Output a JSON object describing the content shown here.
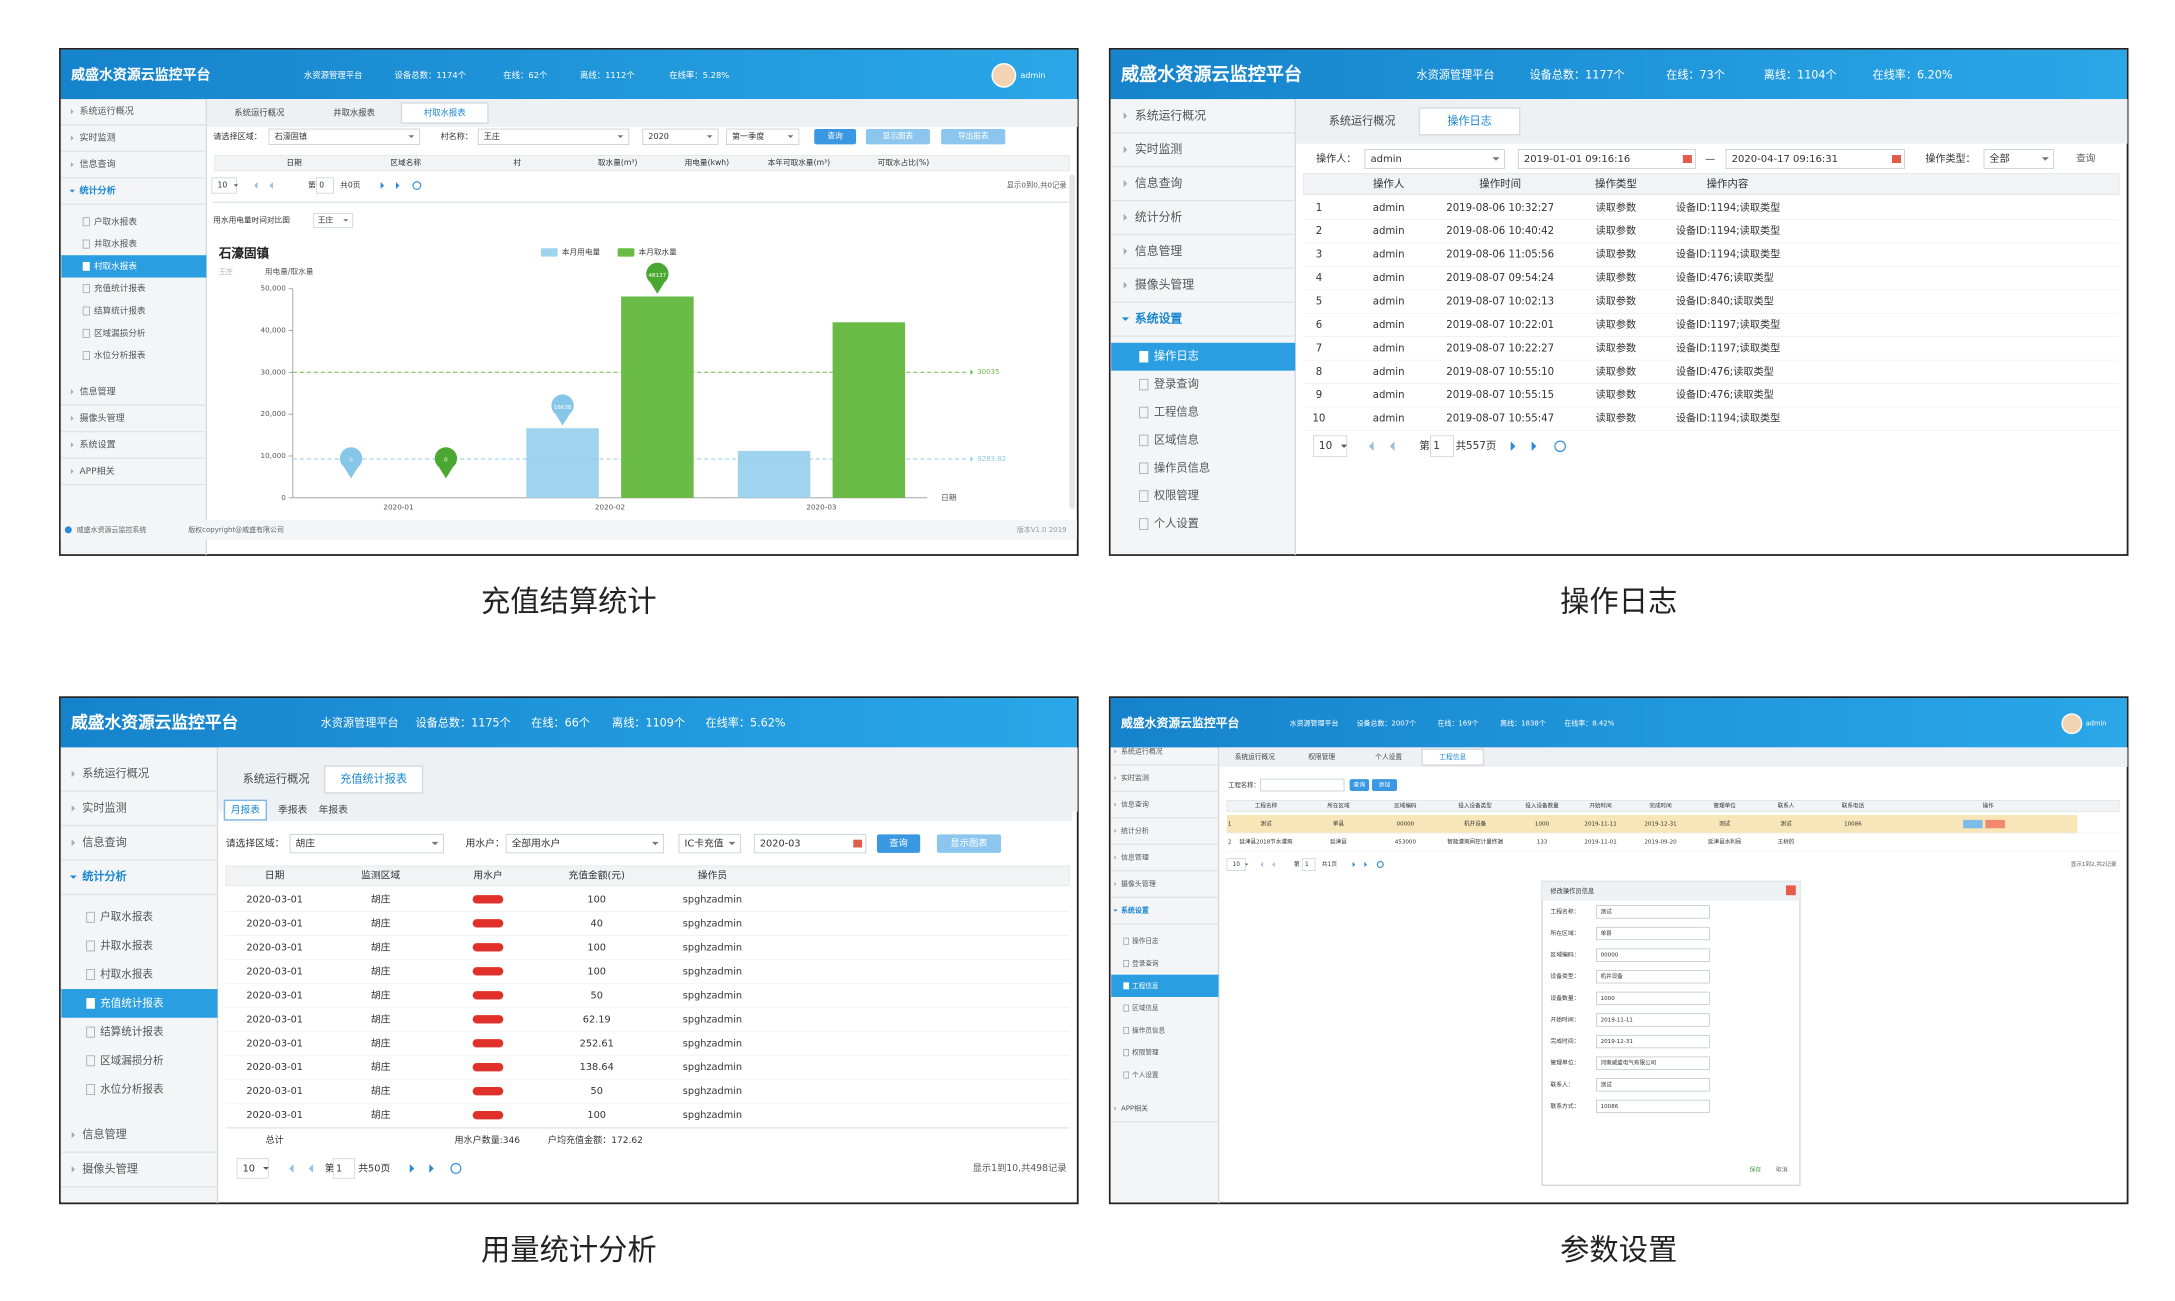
{
  "panels": [
    {
      "caption": "充值结算统计",
      "header": {
        "title": "威盛水资源云监控平台",
        "items": [
          "水资源管理平台",
          "设备总数：1174个",
          "在线：62个",
          "离线：1112个",
          "在线率：5.28%"
        ],
        "user": "admin"
      },
      "nav": [
        {
          "label": "系统运行概况"
        },
        {
          "label": "实时监测"
        },
        {
          "label": "信息查询"
        },
        {
          "label": "统计分析",
          "children": [
            "户取水报表",
            "井取水报表",
            "村取水报表",
            "充值统计报表",
            "结算统计报表",
            "区域漏损分析",
            "水位分析报表"
          ]
        },
        {
          "label": "信息管理"
        },
        {
          "label": "摄像头管理"
        },
        {
          "label": "系统设置"
        },
        {
          "label": "APP相关"
        }
      ],
      "tabs": [
        "系统运行概况",
        "井取水报表",
        "村取水报表"
      ],
      "filters": [
        "请选择区域：",
        "石濠固镇",
        "村名称：",
        "王庄",
        "2020",
        "第一季度"
      ],
      "buttons": [
        "查询",
        "显示图表",
        "导出报表"
      ],
      "table": {
        "headers": [
          "日期",
          "区域名称",
          "村",
          "取水量(m³)",
          "用电量(kwh)",
          "本年可取水量(m³)",
          "可取水占比(%)"
        ]
      },
      "pager": [
        "10",
        "第",
        "0",
        "共0页",
        "显示0到0,共0记录"
      ],
      "chart_label": "用水用电量时间对比图",
      "chart_select": "王庄",
      "chart": {
        "type": "bar",
        "title": "石濠固镇",
        "subtitle": "王庄",
        "y_label": "用电量/取水量",
        "x_label": "日期",
        "categories": [
          "2020-01",
          "2020-02",
          "2020-03"
        ],
        "series": [
          {
            "name": "本月用电量",
            "color": "#9fd3ee",
            "values": [
              0,
              16638,
              11213
            ],
            "average": 9283.82
          },
          {
            "name": "本月取水量",
            "color": "#6abb45",
            "values": [
              0,
              48137,
              41968
            ],
            "average": 30035
          }
        ],
        "ylim": [
          0,
          50000
        ],
        "yticks": [
          0,
          {
            "value": 10000,
            "label": "10,000"
          },
          {
            "value": 20000,
            "label": "20,000"
          },
          {
            "value": 30000,
            "label": "30,000"
          },
          {
            "value": 40000,
            "label": "40,000"
          },
          {
            "value": 50000,
            "label": "50,000"
          }
        ]
      },
      "footer": [
        "威盛水资源云监控系统",
        "版权copyright@威盛有限公司",
        "版本V1.0 2019"
      ]
    },
    {
      "caption": "操作日志",
      "header": {
        "title": "威盛水资源云监控平台",
        "items": [
          "水资源管理平台",
          "设备总数：1177个",
          "在线：73个",
          "离线：1104个",
          "在线率：6.20%"
        ]
      },
      "nav": [
        {
          "label": "系统运行概况"
        },
        {
          "label": "实时监测"
        },
        {
          "label": "信息查询"
        },
        {
          "label": "统计分析"
        },
        {
          "label": "信息管理"
        },
        {
          "label": "摄像头管理"
        },
        {
          "label": "系统设置",
          "children": [
            "操作日志",
            "登录查询",
            "工程信息",
            "区域信息",
            "操作员信息",
            "权限管理",
            "个人设置"
          ]
        }
      ],
      "tabs": [
        "系统运行概况",
        "操作日志"
      ],
      "filters": [
        "操作人：",
        "admin",
        "2019-01-01 09:16:16",
        "—",
        "2020-04-17 09:16:31",
        "操作类型：",
        "全部"
      ],
      "buttons": [
        "查询"
      ],
      "table": {
        "headers": [
          "操作人",
          "操作时间",
          "操作类型",
          "操作内容"
        ],
        "rows": [
          [
            "1",
            "admin",
            "2019-08-06 10:32:27",
            "读取参数",
            "设备ID:1194;读取类型"
          ],
          [
            "2",
            "admin",
            "2019-08-06 10:40:42",
            "读取参数",
            "设备ID:1194;读取类型"
          ],
          [
            "3",
            "admin",
            "2019-08-06 11:05:56",
            "读取参数",
            "设备ID:1194;读取类型"
          ],
          [
            "4",
            "admin",
            "2019-08-07 09:54:24",
            "读取参数",
            "设备ID:476;读取类型"
          ],
          [
            "5",
            "admin",
            "2019-08-07 10:02:13",
            "读取参数",
            "设备ID:840;读取类型"
          ],
          [
            "6",
            "admin",
            "2019-08-07 10:22:01",
            "读取参数",
            "设备ID:1197;读取类型"
          ],
          [
            "7",
            "admin",
            "2019-08-07 10:22:27",
            "读取参数",
            "设备ID:1197;读取类型"
          ],
          [
            "8",
            "admin",
            "2019-08-07 10:55:10",
            "读取参数",
            "设备ID:476;读取类型"
          ],
          [
            "9",
            "admin",
            "2019-08-07 10:55:15",
            "读取参数",
            "设备ID:476;读取类型"
          ],
          [
            "10",
            "admin",
            "2019-08-07 10:55:47",
            "读取参数",
            "设备ID:1194;读取类型"
          ]
        ]
      },
      "pager": [
        "10",
        "第",
        "1",
        "共557页"
      ]
    },
    {
      "caption": "用量统计分析",
      "header": {
        "title": "威盛水资源云监控平台",
        "items": [
          "水资源管理平台",
          "设备总数：1175个",
          "在线：66个",
          "离线：1109个",
          "在线率：5.62%"
        ]
      },
      "nav": [
        {
          "label": "系统运行概况"
        },
        {
          "label": "实时监测"
        },
        {
          "label": "信息查询"
        },
        {
          "label": "统计分析",
          "children": [
            "户取水报表",
            "井取水报表",
            "村取水报表",
            "充值统计报表",
            "结算统计报表",
            "区域漏损分析",
            "水位分析报表"
          ]
        },
        {
          "label": "信息管理"
        },
        {
          "label": "摄像头管理"
        }
      ],
      "tabs": [
        "系统运行概况",
        "充值统计报表"
      ],
      "subtabs": [
        "月报表",
        "季报表",
        "年报表"
      ],
      "filters": [
        "请选择区域：",
        "胡庄",
        "用水户：",
        "全部用水户",
        "IC卡充值",
        "2020-03"
      ],
      "buttons": [
        "查询",
        "显示图表"
      ],
      "table": {
        "headers": [
          "日期",
          "监测区域",
          "用水户",
          "充值金额(元)",
          "操作员"
        ],
        "rows": [
          [
            "2020-03-01",
            "胡庄",
            null,
            "100",
            "spghzadmin"
          ],
          [
            "2020-03-01",
            "胡庄",
            null,
            "40",
            "spghzadmin"
          ],
          [
            "2020-03-01",
            "胡庄",
            null,
            "100",
            "spghzadmin"
          ],
          [
            "2020-03-01",
            "胡庄",
            null,
            "100",
            "spghzadmin"
          ],
          [
            "2020-03-01",
            "胡庄",
            null,
            "50",
            "spghzadmin"
          ],
          [
            "2020-03-01",
            "胡庄",
            null,
            "62.19",
            "spghzadmin"
          ],
          [
            "2020-03-01",
            "胡庄",
            null,
            "252.61",
            "spghzadmin"
          ],
          [
            "2020-03-01",
            "胡庄",
            null,
            "138.64",
            "spghzadmin"
          ],
          [
            "2020-03-01",
            "胡庄",
            null,
            "50",
            "spghzadmin"
          ],
          [
            "2020-03-01",
            "胡庄",
            null,
            "100",
            "spghzadmin"
          ]
        ]
      },
      "totals": [
        "总计",
        "用水户数量:346",
        "户均充值金额：172.62"
      ],
      "pager": [
        "10",
        "第",
        "1",
        "共50页",
        "显示1到10,共498记录"
      ]
    },
    {
      "caption": "参数设置",
      "header": {
        "title": "威盛水资源云监控平台",
        "items": [
          "水资源管理平台",
          "设备总数：2007个",
          "在线：169个",
          "离线：1838个",
          "在线率：8.42%"
        ],
        "user": "admin"
      },
      "nav": [
        {
          "label": "系统运行概况"
        },
        {
          "label": "实时监测"
        },
        {
          "label": "信息查询"
        },
        {
          "label": "统计分析"
        },
        {
          "label": "信息管理"
        },
        {
          "label": "摄像头管理"
        },
        {
          "label": "系统设置",
          "children": [
            "操作日志",
            "登录查询",
            "工程信息",
            "区域信息",
            "操作员信息",
            "权限管理",
            "个人设置"
          ]
        },
        {
          "label": "APP相关"
        }
      ],
      "tabs": [
        "系统运行概况",
        "权限管理",
        "个人设置",
        "工程信息"
      ],
      "filters": [
        "工程名称："
      ],
      "buttons": [
        "查询",
        "添加"
      ],
      "table": {
        "headers": [
          "工程名称",
          "所在区域",
          "区域编码",
          "投入设备类型",
          "投入设备数量",
          "开始时间",
          "完成时间",
          "管理单位",
          "联系人",
          "联系电话",
          "操作"
        ],
        "rows": [
          [
            "1",
            "测试",
            "单县",
            "00000",
            "机井设备",
            "1000",
            "2019-11-11",
            "2019-12-31",
            "测试",
            "测试",
            "10086"
          ],
          [
            "2",
            "延津县2018节水灌溉",
            "延津县",
            "453000",
            "智能灌溉阀控计量终端",
            "133",
            "2019-11-01",
            "2019-09-20",
            "延津县水利局",
            "王树的"
          ]
        ]
      },
      "pager": [
        "10",
        "第",
        "1",
        "共1页",
        "显示1到2,共2记录"
      ],
      "dialog": {
        "title": "修改操作员信息",
        "fields": [
          [
            "工程名称：",
            "测试"
          ],
          [
            "所在区域：",
            "单县"
          ],
          [
            "区域编码：",
            "00000"
          ],
          [
            "设备类型：",
            "机井设备"
          ],
          [
            "设备数量：",
            "1000"
          ],
          [
            "开始时间：",
            "2019-11-11"
          ],
          [
            "完成时间：",
            "2019-12-31"
          ],
          [
            "管理单位：",
            "河南威盛电气有限公司"
          ],
          [
            "联系人：",
            "测试"
          ],
          [
            "联系方式：",
            "10086"
          ]
        ],
        "buttons": [
          "保存",
          "取消"
        ]
      }
    }
  ]
}
